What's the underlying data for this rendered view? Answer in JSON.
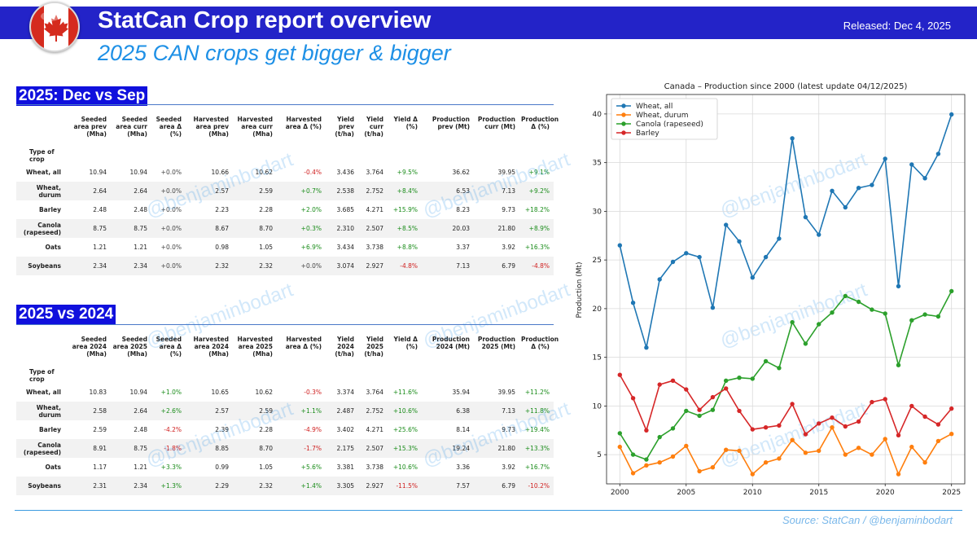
{
  "header": {
    "title": "StatCan Crop report overview",
    "released": "Released: Dec 4, 2025",
    "subtitle": "2025 CAN crops get bigger & bigger"
  },
  "watermark": "@benjaminbodart",
  "footer": {
    "source": "Source: StatCan /  @benjaminbodart"
  },
  "colors": {
    "banner": "#2323c8",
    "subtitle": "#1e90e6",
    "positive": "#1a8c1a",
    "negative": "#d02020"
  },
  "table1": {
    "title": "2025: Dec vs Sep",
    "row_header": "Type of crop",
    "columns": [
      "Seeded area prev (Mha)",
      "Seeded area curr (Mha)",
      "Seeded area Δ (%)",
      "Harvested area prev (Mha)",
      "Harvested area curr (Mha)",
      "Harvested area Δ (%)",
      "Yield prev (t/ha)",
      "Yield curr (t/ha)",
      "Yield Δ (%)",
      "Production prev (Mt)",
      "Production curr (Mt)",
      "Production Δ (%)"
    ],
    "rows": [
      {
        "crop": "Wheat, all",
        "cells": [
          "10.94",
          "10.94",
          "+0.0%",
          "10.66",
          "10.62",
          "-0.4%",
          "3.436",
          "3.764",
          "+9.5%",
          "36.62",
          "39.95",
          "+9.1%"
        ]
      },
      {
        "crop": "Wheat, durum",
        "cells": [
          "2.64",
          "2.64",
          "+0.0%",
          "2.57",
          "2.59",
          "+0.7%",
          "2.538",
          "2.752",
          "+8.4%",
          "6.53",
          "7.13",
          "+9.2%"
        ]
      },
      {
        "crop": "Barley",
        "cells": [
          "2.48",
          "2.48",
          "+0.0%",
          "2.23",
          "2.28",
          "+2.0%",
          "3.685",
          "4.271",
          "+15.9%",
          "8.23",
          "9.73",
          "+18.2%"
        ]
      },
      {
        "crop": "Canola (rapeseed)",
        "cells": [
          "8.75",
          "8.75",
          "+0.0%",
          "8.67",
          "8.70",
          "+0.3%",
          "2.310",
          "2.507",
          "+8.5%",
          "20.03",
          "21.80",
          "+8.9%"
        ]
      },
      {
        "crop": "Oats",
        "cells": [
          "1.21",
          "1.21",
          "+0.0%",
          "0.98",
          "1.05",
          "+6.9%",
          "3.434",
          "3.738",
          "+8.8%",
          "3.37",
          "3.92",
          "+16.3%"
        ]
      },
      {
        "crop": "Soybeans",
        "cells": [
          "2.34",
          "2.34",
          "+0.0%",
          "2.32",
          "2.32",
          "+0.0%",
          "3.074",
          "2.927",
          "-4.8%",
          "7.13",
          "6.79",
          "-4.8%"
        ]
      }
    ]
  },
  "table2": {
    "title": "2025 vs 2024",
    "row_header": "Type of crop",
    "columns": [
      "Seeded area 2024 (Mha)",
      "Seeded area 2025 (Mha)",
      "Seeded area Δ (%)",
      "Harvested area 2024 (Mha)",
      "Harvested area 2025 (Mha)",
      "Harvested area Δ (%)",
      "Yield 2024 (t/ha)",
      "Yield 2025 (t/ha)",
      "Yield Δ (%)",
      "Production 2024 (Mt)",
      "Production 2025 (Mt)",
      "Production Δ (%)"
    ],
    "rows": [
      {
        "crop": "Wheat, all",
        "cells": [
          "10.83",
          "10.94",
          "+1.0%",
          "10.65",
          "10.62",
          "-0.3%",
          "3.374",
          "3.764",
          "+11.6%",
          "35.94",
          "39.95",
          "+11.2%"
        ]
      },
      {
        "crop": "Wheat, durum",
        "cells": [
          "2.58",
          "2.64",
          "+2.6%",
          "2.57",
          "2.59",
          "+1.1%",
          "2.487",
          "2.752",
          "+10.6%",
          "6.38",
          "7.13",
          "+11.8%"
        ]
      },
      {
        "crop": "Barley",
        "cells": [
          "2.59",
          "2.48",
          "-4.2%",
          "2.39",
          "2.28",
          "-4.9%",
          "3.402",
          "4.271",
          "+25.6%",
          "8.14",
          "9.73",
          "+19.4%"
        ]
      },
      {
        "crop": "Canola (rapeseed)",
        "cells": [
          "8.91",
          "8.75",
          "-1.8%",
          "8.85",
          "8.70",
          "-1.7%",
          "2.175",
          "2.507",
          "+15.3%",
          "19.24",
          "21.80",
          "+13.3%"
        ]
      },
      {
        "crop": "Oats",
        "cells": [
          "1.17",
          "1.21",
          "+3.3%",
          "0.99",
          "1.05",
          "+5.6%",
          "3.381",
          "3.738",
          "+10.6%",
          "3.36",
          "3.92",
          "+16.7%"
        ]
      },
      {
        "crop": "Soybeans",
        "cells": [
          "2.31",
          "2.34",
          "+1.3%",
          "2.29",
          "2.32",
          "+1.4%",
          "3.305",
          "2.927",
          "-11.5%",
          "7.57",
          "6.79",
          "-10.2%"
        ]
      }
    ]
  },
  "chart_data": {
    "type": "line",
    "title": "Canada – Production since 2000 (latest update 04/12/2025)",
    "xlabel": "",
    "ylabel": "Production (Mt)",
    "xlim": [
      1999,
      2026
    ],
    "ylim": [
      2,
      42
    ],
    "xticks": [
      2000,
      2005,
      2010,
      2015,
      2020,
      2025
    ],
    "yticks": [
      5,
      10,
      15,
      20,
      25,
      30,
      35,
      40
    ],
    "grid": true,
    "legend": "top-left",
    "x": [
      2000,
      2001,
      2002,
      2003,
      2004,
      2005,
      2006,
      2007,
      2008,
      2009,
      2010,
      2011,
      2012,
      2013,
      2014,
      2015,
      2016,
      2017,
      2018,
      2019,
      2020,
      2021,
      2022,
      2023,
      2024,
      2025
    ],
    "series": [
      {
        "name": "Wheat, all",
        "color": "#1f77b4",
        "values": [
          26.5,
          20.6,
          16.0,
          23.0,
          24.8,
          25.7,
          25.3,
          20.1,
          28.6,
          26.9,
          23.2,
          25.3,
          27.2,
          37.5,
          29.4,
          27.6,
          32.1,
          30.4,
          32.4,
          32.7,
          35.4,
          22.3,
          34.8,
          33.4,
          35.9,
          39.95
        ]
      },
      {
        "name": "Wheat, durum",
        "color": "#ff7f0e",
        "values": [
          5.8,
          3.1,
          3.9,
          4.2,
          4.8,
          5.9,
          3.3,
          3.7,
          5.5,
          5.4,
          3.0,
          4.2,
          4.6,
          6.5,
          5.2,
          5.4,
          7.8,
          5.0,
          5.7,
          5.0,
          6.6,
          3.0,
          5.8,
          4.2,
          6.4,
          7.13
        ]
      },
      {
        "name": "Canola (rapeseed)",
        "color": "#2ca02c",
        "values": [
          7.2,
          5.0,
          4.5,
          6.8,
          7.7,
          9.5,
          9.0,
          9.6,
          12.6,
          12.9,
          12.8,
          14.6,
          13.9,
          18.6,
          16.4,
          18.4,
          19.6,
          21.3,
          20.7,
          19.9,
          19.5,
          14.2,
          18.8,
          19.4,
          19.2,
          21.8
        ]
      },
      {
        "name": "Barley",
        "color": "#d62728",
        "values": [
          13.2,
          10.8,
          7.5,
          12.2,
          12.6,
          11.7,
          9.6,
          10.9,
          11.8,
          9.5,
          7.6,
          7.8,
          8.0,
          10.2,
          7.1,
          8.2,
          8.8,
          7.9,
          8.4,
          10.4,
          10.7,
          7.0,
          10.0,
          8.9,
          8.1,
          9.73
        ]
      }
    ]
  }
}
